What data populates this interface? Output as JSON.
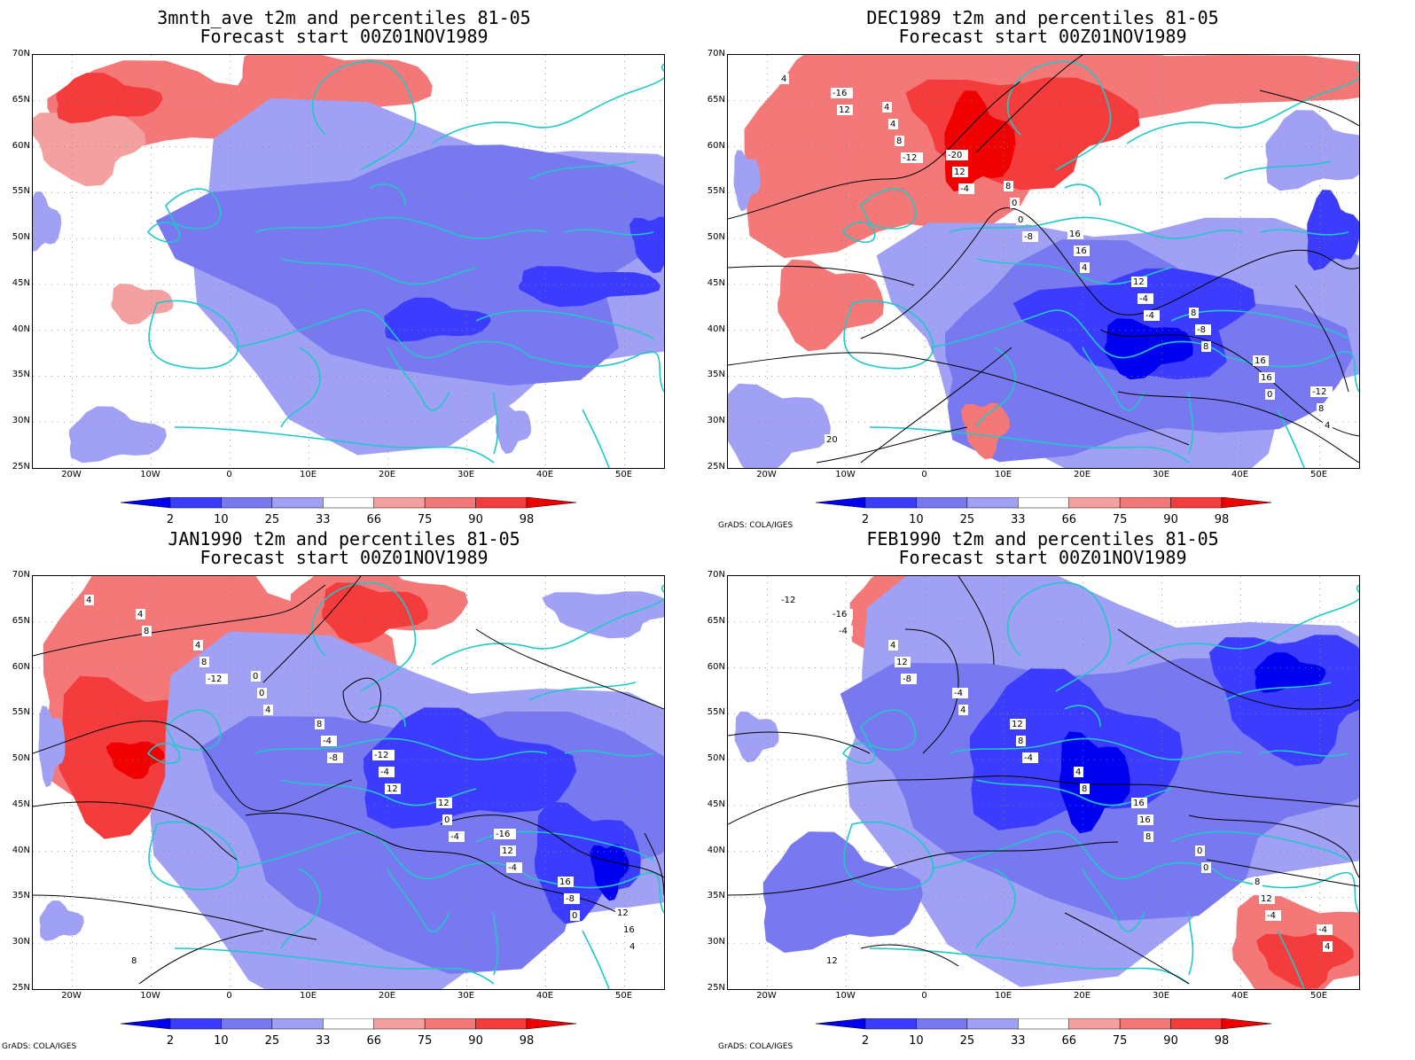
{
  "panels": [
    {
      "id": "p1",
      "title_line1": "3mnth_ave t2m and percentiles 81-05",
      "title_line2": "Forecast start 00Z01NOV1989",
      "credit": "",
      "has_contours": false
    },
    {
      "id": "p2",
      "title_line1": "DEC1989 t2m and percentiles 81-05",
      "title_line2": "Forecast start 00Z01NOV1989",
      "credit": "GrADS: COLA/IGES",
      "has_contours": true
    },
    {
      "id": "p3",
      "title_line1": "JAN1990 t2m and percentiles 81-05",
      "title_line2": "Forecast start 00Z01NOV1989",
      "credit": "GrADS: COLA/IGES",
      "has_contours": true
    },
    {
      "id": "p4",
      "title_line1": "FEB1990 t2m and percentiles 81-05",
      "title_line2": "Forecast start 00Z01NOV1989",
      "credit": "GrADS: COLA/IGES",
      "has_contours": true
    }
  ],
  "map_extent": {
    "lon": [
      -25,
      55
    ],
    "lat": [
      25,
      70
    ]
  },
  "lat_labels": [
    "70N",
    "65N",
    "60N",
    "55N",
    "50N",
    "45N",
    "40N",
    "35N",
    "30N",
    "25N"
  ],
  "lon_labels": [
    "20W",
    "10W",
    "0",
    "10E",
    "20E",
    "30E",
    "40E",
    "50E"
  ],
  "colorbar": {
    "labels": [
      "2",
      "10",
      "25",
      "33",
      "66",
      "75",
      "90",
      "98"
    ],
    "colors": [
      "#0000f0",
      "#3c3cff",
      "#7878f0",
      "#a0a0f5",
      "#ffffff",
      "#f5a0a0",
      "#f57878",
      "#f53c3c",
      "#f00000"
    ]
  },
  "contour_labels_dec": [
    "4",
    "-12",
    "-8",
    "-4",
    "0",
    "12",
    "-4",
    "4",
    "8",
    "4",
    "8",
    "0",
    "-4",
    "16",
    "-16",
    "12",
    "16",
    "-8",
    "8",
    "4",
    "0",
    "12",
    "16",
    "20",
    "-20",
    "16",
    "8",
    "-12",
    "4",
    "8"
  ],
  "contour_labels_jan": [
    "4",
    "-12",
    "-8",
    "-4",
    "0",
    "8",
    "4",
    "12",
    "-4",
    "4",
    "8",
    "-4",
    "0",
    "-8",
    "4",
    "0",
    "-4",
    "12",
    "16",
    "4",
    "8",
    "12",
    "16",
    "8",
    "0",
    "-12",
    "-16",
    "12"
  ],
  "contour_labels_feb": [
    "-12",
    "-8",
    "-4",
    "8",
    "-4",
    "-4",
    "4",
    "8",
    "0",
    "4",
    "12",
    "8",
    "16",
    "12",
    "-16",
    "-4",
    "4",
    "0",
    "-4",
    "4",
    "12",
    "16",
    "8",
    "12"
  ]
}
